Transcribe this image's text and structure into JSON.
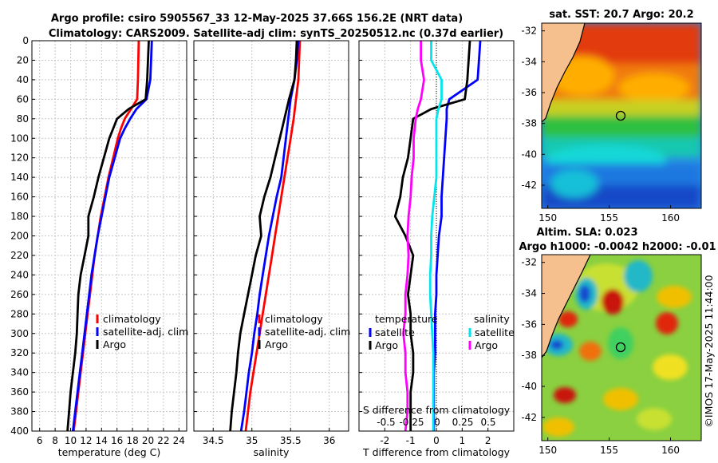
{
  "title_line1": "Argo profile: csiro 5905567_33 12-May-2025 37.66S 156.2E (NRT data)",
  "title_line2": "Climatology: CARS2009. Satellite-adj clim: synTS_20250512.nc (0.37d earlier)",
  "sst_title": "sat. SST: 20.7 Argo: 20.2",
  "sla_title1": "Altim. SLA: 0.023",
  "sla_title2": "Argo h1000: -0.0042 h2000: -0.01",
  "side_stamp": "©IMOS 17-May-2025 11:44:00",
  "depth_ticks": [
    "0",
    "20",
    "40",
    "60",
    "80",
    "100",
    "120",
    "140",
    "160",
    "180",
    "200",
    "220",
    "240",
    "260",
    "280",
    "300",
    "320",
    "340",
    "360",
    "380",
    "400"
  ],
  "colors": {
    "climatology": "#ff0000",
    "satellite": "#0000ff",
    "argo": "#000000",
    "sat_salinity": "#00e5ee",
    "argo_salinity": "#ff00ff"
  },
  "chart_data": [
    {
      "type": "line",
      "name": "temperature",
      "xlabel": "temperature (deg C)",
      "xlim": [
        5,
        25
      ],
      "ylim": [
        400,
        0
      ],
      "xticks": [
        "6",
        "8",
        "10",
        "12",
        "14",
        "16",
        "18",
        "20",
        "22",
        "24"
      ],
      "legend": [
        "climatology",
        "satellite-adj. clim",
        "Argo"
      ],
      "depth": [
        0,
        20,
        40,
        60,
        70,
        80,
        90,
        100,
        120,
        140,
        160,
        180,
        200,
        220,
        240,
        260,
        280,
        300,
        320,
        340,
        360,
        380,
        400
      ],
      "series": [
        {
          "name": "climatology",
          "values": [
            18.8,
            18.75,
            18.7,
            18.6,
            17.8,
            17.0,
            16.5,
            16.1,
            15.5,
            14.9,
            14.4,
            13.9,
            13.5,
            13.1,
            12.8,
            12.5,
            12.2,
            11.9,
            11.6,
            11.3,
            11.0,
            10.7,
            10.4
          ]
        },
        {
          "name": "satellite-adj. clim",
          "values": [
            20.5,
            20.4,
            20.3,
            19.8,
            18.5,
            17.7,
            17.0,
            16.4,
            15.7,
            15.0,
            14.5,
            14.0,
            13.5,
            13.1,
            12.7,
            12.4,
            12.1,
            11.8,
            11.5,
            11.2,
            10.9,
            10.6,
            10.3
          ]
        },
        {
          "name": "Argo",
          "values": [
            20.1,
            20.0,
            19.9,
            19.7,
            17.5,
            16.0,
            15.5,
            15.0,
            14.3,
            13.6,
            13.0,
            12.3,
            12.3,
            11.8,
            11.3,
            11.0,
            10.9,
            10.8,
            10.6,
            10.3,
            10.0,
            9.8,
            9.6
          ]
        }
      ]
    },
    {
      "type": "line",
      "name": "salinity",
      "xlabel": "salinity",
      "xlim": [
        34.25,
        36.25
      ],
      "ylim": [
        400,
        0
      ],
      "xticks": [
        "34.5",
        "35",
        "35.5",
        "36"
      ],
      "legend": [
        "climatology",
        "satellite-adj. clim",
        "Argo"
      ],
      "depth": [
        0,
        20,
        40,
        60,
        80,
        100,
        120,
        140,
        160,
        180,
        200,
        220,
        240,
        260,
        280,
        300,
        320,
        340,
        360,
        380,
        400
      ],
      "series": [
        {
          "name": "climatology",
          "values": [
            35.62,
            35.61,
            35.6,
            35.57,
            35.54,
            35.5,
            35.46,
            35.42,
            35.38,
            35.34,
            35.3,
            35.26,
            35.22,
            35.18,
            35.14,
            35.1,
            35.06,
            35.02,
            34.98,
            34.95,
            34.92
          ]
        },
        {
          "name": "satellite-adj. clim",
          "values": [
            35.6,
            35.58,
            35.55,
            35.5,
            35.47,
            35.44,
            35.41,
            35.38,
            35.32,
            35.27,
            35.22,
            35.18,
            35.14,
            35.1,
            35.07,
            35.03,
            35.0,
            34.96,
            34.93,
            34.9,
            34.86
          ]
        },
        {
          "name": "Argo",
          "values": [
            35.58,
            35.57,
            35.55,
            35.48,
            35.42,
            35.36,
            35.3,
            35.24,
            35.16,
            35.1,
            35.12,
            35.05,
            35.0,
            34.95,
            34.9,
            34.85,
            34.82,
            34.8,
            34.77,
            34.74,
            34.72
          ]
        }
      ]
    },
    {
      "type": "line",
      "name": "difference from climatology",
      "xlabel": "T difference from climatology",
      "xlabel_top": "S difference from climatology",
      "xlim": [
        -3,
        3
      ],
      "ylim": [
        400,
        0
      ],
      "xticks": [
        "-2",
        "-1",
        "0",
        "1",
        "2"
      ],
      "xticks_top": [
        "-0.5",
        "-0.25",
        "0",
        "0.25",
        "0.5"
      ],
      "legend_left_title": "temperature",
      "legend_right_title": "salinity",
      "legend_left": [
        "satellite",
        "Argo"
      ],
      "legend_right": [
        "satellite",
        "Argo"
      ],
      "depth": [
        0,
        20,
        40,
        60,
        70,
        80,
        100,
        120,
        140,
        160,
        180,
        200,
        220,
        240,
        260,
        280,
        300,
        320,
        340,
        360,
        380,
        400
      ],
      "series": [
        {
          "name": "temperature satellite",
          "values": [
            1.7,
            1.65,
            1.6,
            0.5,
            0.4,
            0.4,
            0.35,
            0.3,
            0.25,
            0.2,
            0.2,
            0.1,
            0.05,
            0.0,
            0.0,
            -0.05,
            -0.05,
            -0.05,
            -0.1,
            -0.1,
            -0.1,
            -0.1
          ]
        },
        {
          "name": "temperature Argo",
          "values": [
            1.3,
            1.25,
            1.2,
            1.1,
            -0.2,
            -0.9,
            -1.0,
            -1.1,
            -1.3,
            -1.4,
            -1.6,
            -1.2,
            -0.9,
            -1.0,
            -1.1,
            -1.0,
            -1.0,
            -0.9,
            -0.9,
            -1.0,
            -1.0,
            -1.0
          ]
        },
        {
          "name": "salinity satellite",
          "values": [
            -0.05,
            -0.05,
            0.05,
            0.05,
            0.02,
            0.0,
            0.0,
            0.0,
            0.0,
            -0.02,
            -0.04,
            -0.05,
            -0.05,
            -0.06,
            -0.06,
            -0.05,
            -0.04,
            -0.03,
            -0.03,
            -0.03,
            -0.03,
            -0.03
          ]
        },
        {
          "name": "salinity Argo",
          "values": [
            -0.15,
            -0.15,
            -0.12,
            -0.15,
            -0.18,
            -0.2,
            -0.22,
            -0.22,
            -0.24,
            -0.25,
            -0.27,
            -0.28,
            -0.27,
            -0.28,
            -0.3,
            -0.3,
            -0.32,
            -0.3,
            -0.3,
            -0.28,
            -0.28,
            -0.3
          ]
        }
      ]
    },
    {
      "type": "heatmap",
      "name": "sat. SST map",
      "xlim": [
        149.5,
        162.5
      ],
      "ylim": [
        -43.5,
        -31.5
      ],
      "xticks": [
        "150",
        "155",
        "160"
      ],
      "yticks": [
        "-32",
        "-34",
        "-36",
        "-38",
        "-40",
        "-42"
      ],
      "argo_location": [
        156.2,
        -37.66
      ]
    },
    {
      "type": "heatmap",
      "name": "Altim. SLA map",
      "xlim": [
        149.5,
        162.5
      ],
      "ylim": [
        -43.5,
        -31.5
      ],
      "xticks": [
        "150",
        "155",
        "160"
      ],
      "yticks": [
        "-32",
        "-34",
        "-36",
        "-38",
        "-40",
        "-42"
      ],
      "argo_location": [
        156.2,
        -37.66
      ]
    }
  ]
}
